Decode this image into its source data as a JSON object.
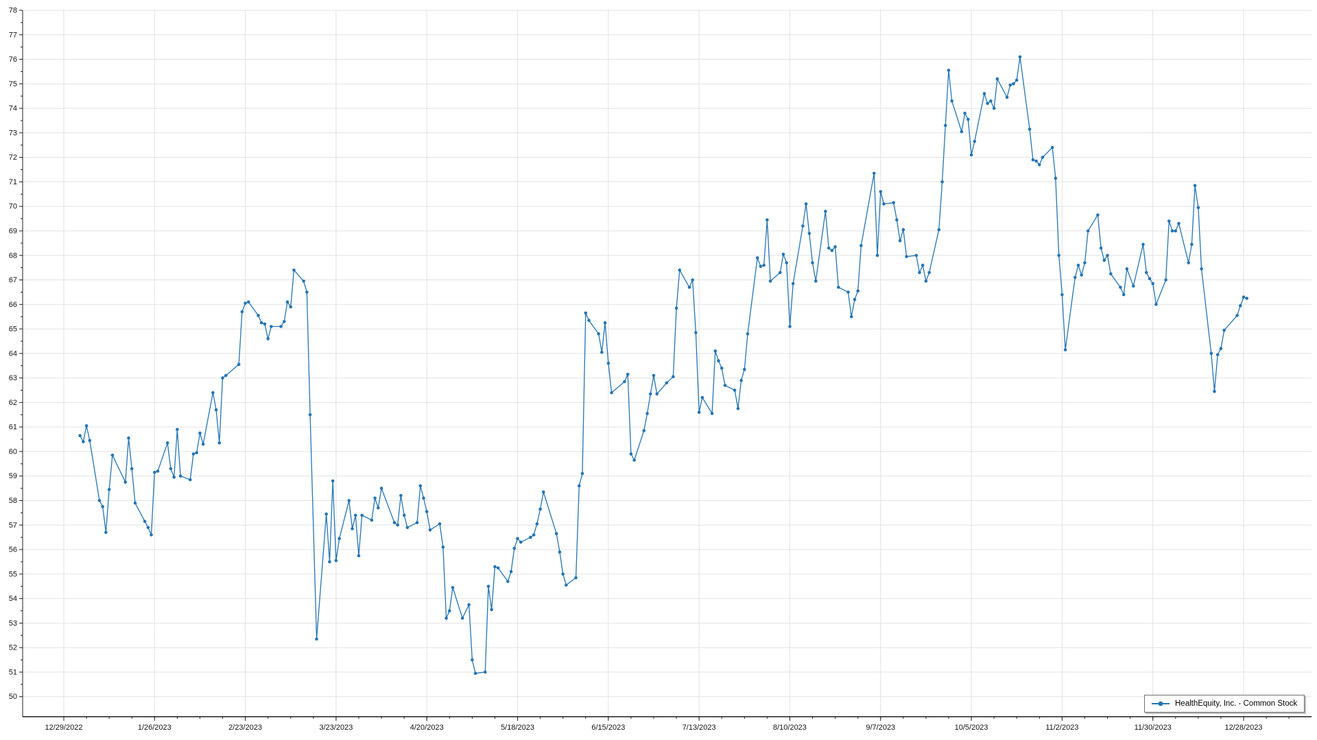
{
  "page": {
    "background": "#ffffff"
  },
  "legend": {
    "label": "HealthEquity, Inc. - Common Stock"
  },
  "colors": {
    "series_line": "#2474b4",
    "grid": "#e2e2e2",
    "axis": "#1c1c1c",
    "tick_text": "#111111",
    "legend_border": "#6f6f6f"
  },
  "chart_data": {
    "type": "line",
    "title": "",
    "xlabel": "",
    "ylabel": "",
    "legend_position": "bottom-right",
    "grid": true,
    "series_name": "HealthEquity, Inc. - Common Stock",
    "marker": "circle",
    "ylim": [
      49.2,
      78
    ],
    "y_axis": {
      "min": 50,
      "max": 78,
      "step": 1,
      "minor_step": 0.5,
      "tick_labels": [
        "50",
        "51",
        "52",
        "53",
        "54",
        "55",
        "56",
        "57",
        "58",
        "59",
        "60",
        "61",
        "62",
        "63",
        "64",
        "65",
        "66",
        "67",
        "68",
        "69",
        "70",
        "71",
        "72",
        "73",
        "74",
        "75",
        "76",
        "77",
        "78"
      ]
    },
    "x_axis": {
      "tick_interval_days": 28,
      "minor_tick_interval_days": 7,
      "tick_dates": [
        "2022-12-29",
        "2023-01-26",
        "2023-02-23",
        "2023-03-23",
        "2023-04-20",
        "2023-05-18",
        "2023-06-15",
        "2023-07-13",
        "2023-08-10",
        "2023-09-07",
        "2023-10-05",
        "2023-11-02",
        "2023-11-30",
        "2023-12-28"
      ],
      "tick_labels": [
        "12/29/2022",
        "1/26/2023",
        "2/23/2023",
        "3/23/2023",
        "4/20/2023",
        "5/18/2023",
        "6/15/2023",
        "7/13/2023",
        "8/10/2023",
        "9/7/2023",
        "10/5/2023",
        "11/2/2023",
        "11/30/2023",
        "12/28/2023"
      ]
    },
    "x": [
      "2023-01-03",
      "2023-01-04",
      "2023-01-05",
      "2023-01-06",
      "2023-01-09",
      "2023-01-10",
      "2023-01-11",
      "2023-01-12",
      "2023-01-13",
      "2023-01-17",
      "2023-01-18",
      "2023-01-19",
      "2023-01-20",
      "2023-01-23",
      "2023-01-24",
      "2023-01-25",
      "2023-01-26",
      "2023-01-27",
      "2023-01-30",
      "2023-01-31",
      "2023-02-01",
      "2023-02-02",
      "2023-02-03",
      "2023-02-06",
      "2023-02-07",
      "2023-02-08",
      "2023-02-09",
      "2023-02-10",
      "2023-02-13",
      "2023-02-14",
      "2023-02-15",
      "2023-02-16",
      "2023-02-17",
      "2023-02-21",
      "2023-02-22",
      "2023-02-23",
      "2023-02-24",
      "2023-02-27",
      "2023-02-28",
      "2023-03-01",
      "2023-03-02",
      "2023-03-03",
      "2023-03-06",
      "2023-03-07",
      "2023-03-08",
      "2023-03-09",
      "2023-03-10",
      "2023-03-13",
      "2023-03-14",
      "2023-03-15",
      "2023-03-17",
      "2023-03-20",
      "2023-03-21",
      "2023-03-22",
      "2023-03-23",
      "2023-03-24",
      "2023-03-27",
      "2023-03-28",
      "2023-03-29",
      "2023-03-30",
      "2023-03-31",
      "2023-04-03",
      "2023-04-04",
      "2023-04-05",
      "2023-04-06",
      "2023-04-10",
      "2023-04-11",
      "2023-04-12",
      "2023-04-13",
      "2023-04-14",
      "2023-04-17",
      "2023-04-18",
      "2023-04-19",
      "2023-04-20",
      "2023-04-21",
      "2023-04-24",
      "2023-04-25",
      "2023-04-26",
      "2023-04-27",
      "2023-04-28",
      "2023-05-01",
      "2023-05-03",
      "2023-05-04",
      "2023-05-05",
      "2023-05-08",
      "2023-05-09",
      "2023-05-10",
      "2023-05-11",
      "2023-05-12",
      "2023-05-15",
      "2023-05-16",
      "2023-05-17",
      "2023-05-18",
      "2023-05-19",
      "2023-05-22",
      "2023-05-23",
      "2023-05-24",
      "2023-05-25",
      "2023-05-26",
      "2023-05-30",
      "2023-05-31",
      "2023-06-01",
      "2023-06-02",
      "2023-06-05",
      "2023-06-06",
      "2023-06-07",
      "2023-06-08",
      "2023-06-09",
      "2023-06-12",
      "2023-06-13",
      "2023-06-14",
      "2023-06-15",
      "2023-06-16",
      "2023-06-20",
      "2023-06-21",
      "2023-06-22",
      "2023-06-23",
      "2023-06-26",
      "2023-06-27",
      "2023-06-28",
      "2023-06-29",
      "2023-06-30",
      "2023-07-03",
      "2023-07-05",
      "2023-07-06",
      "2023-07-07",
      "2023-07-10",
      "2023-07-11",
      "2023-07-12",
      "2023-07-13",
      "2023-07-14",
      "2023-07-17",
      "2023-07-18",
      "2023-07-19",
      "2023-07-20",
      "2023-07-21",
      "2023-07-24",
      "2023-07-25",
      "2023-07-26",
      "2023-07-27",
      "2023-07-28",
      "2023-07-31",
      "2023-08-01",
      "2023-08-02",
      "2023-08-03",
      "2023-08-04",
      "2023-08-07",
      "2023-08-08",
      "2023-08-09",
      "2023-08-10",
      "2023-08-11",
      "2023-08-14",
      "2023-08-15",
      "2023-08-16",
      "2023-08-17",
      "2023-08-18",
      "2023-08-21",
      "2023-08-22",
      "2023-08-23",
      "2023-08-24",
      "2023-08-25",
      "2023-08-28",
      "2023-08-29",
      "2023-08-30",
      "2023-08-31",
      "2023-09-01",
      "2023-09-05",
      "2023-09-06",
      "2023-09-07",
      "2023-09-08",
      "2023-09-11",
      "2023-09-12",
      "2023-09-13",
      "2023-09-14",
      "2023-09-15",
      "2023-09-18",
      "2023-09-19",
      "2023-09-20",
      "2023-09-21",
      "2023-09-22",
      "2023-09-25",
      "2023-09-26",
      "2023-09-27",
      "2023-09-28",
      "2023-09-29",
      "2023-10-02",
      "2023-10-03",
      "2023-10-04",
      "2023-10-05",
      "2023-10-06",
      "2023-10-09",
      "2023-10-10",
      "2023-10-11",
      "2023-10-12",
      "2023-10-13",
      "2023-10-16",
      "2023-10-17",
      "2023-10-18",
      "2023-10-19",
      "2023-10-20",
      "2023-10-23",
      "2023-10-24",
      "2023-10-25",
      "2023-10-26",
      "2023-10-27",
      "2023-10-30",
      "2023-10-31",
      "2023-11-01",
      "2023-11-02",
      "2023-11-03",
      "2023-11-06",
      "2023-11-07",
      "2023-11-08",
      "2023-11-09",
      "2023-11-10",
      "2023-11-13",
      "2023-11-14",
      "2023-11-15",
      "2023-11-16",
      "2023-11-17",
      "2023-11-20",
      "2023-11-21",
      "2023-11-22",
      "2023-11-24",
      "2023-11-27",
      "2023-11-28",
      "2023-11-29",
      "2023-11-30",
      "2023-12-01",
      "2023-12-04",
      "2023-12-05",
      "2023-12-06",
      "2023-12-07",
      "2023-12-08",
      "2023-12-11",
      "2023-12-12",
      "2023-12-13",
      "2023-12-14",
      "2023-12-15",
      "2023-12-18",
      "2023-12-19",
      "2023-12-20",
      "2023-12-21",
      "2023-12-22",
      "2023-12-26",
      "2023-12-27",
      "2023-12-28",
      "2023-12-29"
    ],
    "values": [
      60.65,
      60.4,
      61.05,
      60.45,
      58.0,
      57.75,
      56.7,
      58.45,
      59.85,
      58.75,
      60.55,
      59.3,
      57.9,
      57.15,
      56.9,
      56.6,
      59.15,
      59.2,
      60.35,
      59.3,
      58.95,
      60.9,
      59.0,
      58.85,
      59.9,
      59.95,
      60.75,
      60.3,
      62.4,
      61.7,
      60.35,
      63.0,
      63.1,
      63.55,
      65.7,
      66.05,
      66.1,
      65.55,
      65.25,
      65.2,
      64.6,
      65.1,
      65.1,
      65.3,
      66.1,
      65.9,
      67.4,
      66.95,
      66.5,
      61.5,
      52.35,
      57.45,
      55.5,
      58.8,
      55.55,
      56.45,
      58.0,
      56.85,
      57.4,
      55.75,
      57.4,
      57.2,
      58.1,
      57.7,
      58.5,
      57.1,
      57.0,
      58.2,
      57.4,
      56.9,
      57.1,
      58.6,
      58.1,
      57.55,
      56.8,
      57.05,
      56.1,
      53.2,
      53.5,
      54.45,
      53.2,
      53.75,
      51.5,
      50.95,
      51.0,
      54.5,
      53.55,
      55.3,
      55.25,
      54.7,
      55.1,
      56.05,
      56.45,
      56.3,
      56.5,
      56.6,
      57.05,
      57.65,
      58.35,
      56.65,
      55.9,
      55.0,
      54.55,
      54.85,
      58.6,
      59.1,
      65.65,
      65.35,
      64.8,
      64.05,
      65.25,
      63.6,
      62.4,
      62.85,
      63.15,
      59.9,
      59.65,
      60.85,
      61.55,
      62.35,
      63.1,
      62.35,
      62.8,
      63.05,
      65.85,
      67.4,
      66.7,
      67.0,
      64.85,
      61.6,
      62.2,
      61.55,
      64.1,
      63.7,
      63.4,
      62.7,
      62.5,
      61.75,
      62.9,
      63.35,
      64.8,
      67.9,
      67.55,
      67.6,
      69.45,
      66.95,
      67.3,
      68.05,
      67.7,
      65.1,
      66.85,
      69.2,
      70.1,
      68.9,
      67.7,
      66.95,
      69.8,
      68.3,
      68.2,
      68.35,
      66.7,
      66.5,
      65.5,
      66.2,
      66.55,
      68.4,
      71.35,
      68.0,
      70.6,
      70.1,
      70.15,
      69.45,
      68.6,
      69.05,
      67.95,
      68.0,
      67.3,
      67.6,
      66.95,
      67.3,
      69.05,
      71.0,
      73.3,
      75.55,
      74.3,
      73.05,
      73.8,
      73.55,
      72.1,
      72.65,
      74.6,
      74.2,
      74.3,
      74.0,
      75.2,
      74.45,
      74.95,
      75.0,
      75.15,
      76.1,
      73.15,
      71.9,
      71.85,
      71.7,
      72.0,
      72.4,
      71.15,
      68.0,
      66.4,
      64.15,
      67.1,
      67.6,
      67.2,
      67.7,
      69.0,
      69.65,
      68.3,
      67.8,
      68.0,
      67.25,
      66.7,
      66.4,
      67.45,
      66.75,
      68.45,
      67.3,
      67.05,
      66.85,
      66.0,
      67.0,
      69.4,
      69.0,
      69.0,
      69.3,
      67.7,
      68.45,
      70.85,
      69.95,
      67.45,
      64.0,
      62.45,
      63.95,
      64.2,
      64.95,
      65.55,
      65.95,
      66.3,
      66.25
    ]
  }
}
